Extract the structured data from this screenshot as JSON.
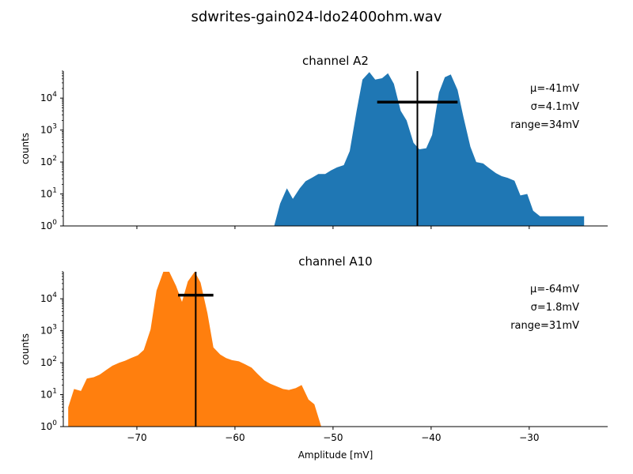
{
  "figure": {
    "title": "sdwrites-gain024-ldo2400ohm.wav",
    "xlabel": "Amplitude [mV]"
  },
  "chart_data": [
    {
      "type": "area",
      "title": "channel A2",
      "xlabel": "Amplitude [mV]",
      "ylabel": "counts",
      "xlim": [
        -77.5,
        -22
      ],
      "ylim": [
        1,
        70000
      ],
      "yscale": "log",
      "color": "#1f77b4",
      "x_ticks": [
        -70,
        -60,
        -50,
        -40,
        -30
      ],
      "x_tick_labels": [
        "",
        "",
        "",
        "",
        ""
      ],
      "y_ticks": [
        1,
        10,
        100,
        1000,
        10000
      ],
      "y_tick_labels": [
        "10^0",
        "10^1",
        "10^2",
        "10^3",
        "10^4"
      ],
      "x": [
        -56.0,
        -55.4,
        -54.7,
        -54.1,
        -53.4,
        -52.8,
        -52.1,
        -51.5,
        -50.8,
        -50.2,
        -49.6,
        -48.9,
        -48.3,
        -47.6,
        -47.0,
        -46.3,
        -45.7,
        -45.0,
        -44.4,
        -43.8,
        -43.1,
        -42.5,
        -41.8,
        -41.2,
        -40.5,
        -39.9,
        -39.2,
        -38.6,
        -38.0,
        -37.3,
        -36.7,
        -36.0,
        -35.4,
        -34.7,
        -34.1,
        -33.4,
        -32.8,
        -32.2,
        -31.5,
        -30.9,
        -30.2,
        -29.6,
        -28.9,
        -28.3,
        -27.6,
        -27.0,
        -26.4,
        -25.7,
        -25.1,
        -24.4
      ],
      "values": [
        1,
        5,
        15,
        7,
        15,
        25,
        33,
        42,
        42,
        55,
        68,
        80,
        220,
        4000,
        38000,
        65000,
        38000,
        42000,
        60000,
        28000,
        4000,
        2000,
        400,
        250,
        270,
        700,
        15000,
        45000,
        55000,
        18000,
        2500,
        300,
        100,
        90,
        65,
        45,
        36,
        32,
        26,
        9,
        10,
        3,
        2,
        2,
        2,
        2,
        2,
        2,
        2,
        2
      ],
      "mean": {
        "x": -41.4
      },
      "std_bar": {
        "x_start": -45.5,
        "x_end": -37.3,
        "y": 7500
      },
      "stats": {
        "mu": "μ=-41mV",
        "sigma": "σ=4.1mV",
        "range": "range=34mV"
      }
    },
    {
      "type": "area",
      "title": "channel A10",
      "xlabel": "Amplitude [mV]",
      "ylabel": "counts",
      "xlim": [
        -77.5,
        -22
      ],
      "ylim": [
        1,
        70000
      ],
      "yscale": "log",
      "color": "#ff7f0e",
      "x_ticks": [
        -70,
        -60,
        -50,
        -40,
        -30
      ],
      "x_tick_labels": [
        "−70",
        "−60",
        "−50",
        "−40",
        "−30"
      ],
      "y_ticks": [
        1,
        10,
        100,
        1000,
        10000
      ],
      "y_tick_labels": [
        "10^0",
        "10^1",
        "10^2",
        "10^3",
        "10^4"
      ],
      "x": [
        -77.0,
        -76.4,
        -75.7,
        -75.1,
        -74.4,
        -73.8,
        -73.1,
        -72.5,
        -71.8,
        -71.2,
        -70.6,
        -69.9,
        -69.3,
        -68.6,
        -68.0,
        -67.3,
        -66.7,
        -66.0,
        -65.4,
        -64.8,
        -64.1,
        -63.5,
        -62.8,
        -62.2,
        -61.5,
        -60.9,
        -60.3,
        -59.6,
        -59.0,
        -58.3,
        -57.7,
        -57.0,
        -56.4,
        -55.7,
        -55.1,
        -54.5,
        -53.8,
        -53.2,
        -52.5,
        -51.9,
        -51.2,
        -50.6,
        -50.0,
        -49.3,
        -48.7,
        -48.0,
        -47.4,
        -47.0
      ],
      "values": [
        4,
        15,
        13,
        32,
        35,
        42,
        60,
        80,
        100,
        115,
        140,
        170,
        250,
        1100,
        18000,
        80000,
        80000,
        25000,
        8000,
        35000,
        70000,
        32000,
        3500,
        300,
        180,
        140,
        120,
        110,
        90,
        70,
        45,
        28,
        22,
        18,
        15,
        14,
        16,
        20,
        7,
        5,
        1,
        1,
        1,
        1,
        1,
        1,
        1,
        1
      ],
      "mean": {
        "x": -64.0
      },
      "std_bar": {
        "x_start": -65.8,
        "x_end": -62.2,
        "y": 13000
      },
      "stats": {
        "mu": "μ=-64mV",
        "sigma": "σ=1.8mV",
        "range": "range=31mV"
      }
    }
  ]
}
